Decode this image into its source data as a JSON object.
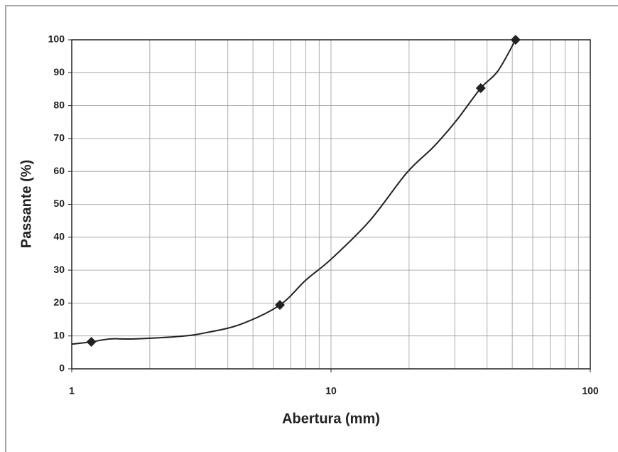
{
  "chart_data": {
    "type": "line",
    "x_label": "Abertura (mm)",
    "y_label": "Passante (%)",
    "xlog": true,
    "xlim": [
      1,
      100
    ],
    "xticks": [
      1,
      10,
      100
    ],
    "ylim": [
      0,
      100
    ],
    "yticks": [
      0,
      10,
      20,
      30,
      40,
      50,
      60,
      70,
      80,
      90,
      100
    ],
    "grid": true,
    "minor_grid": true,
    "series": [
      {
        "color": "#222222",
        "markers": false,
        "smooth": true,
        "x": [
          1,
          1.19,
          1.41,
          1.75,
          2.64,
          3.3,
          4.5,
          6.35,
          8.0,
          10,
          14.1,
          19.6,
          24.8,
          30.4,
          37.8,
          44,
          51.5
        ],
        "values": [
          7.5,
          8.2,
          9.1,
          9.1,
          9.9,
          11,
          13.6,
          19.4,
          27,
          33.3,
          45,
          59.6,
          67.4,
          75.4,
          85.3,
          90.5,
          100
        ]
      },
      {
        "color": "#222222",
        "markers": true,
        "line": false,
        "x": [
          1.19,
          6.35,
          37.8,
          51.5
        ],
        "values": [
          8.2,
          19.4,
          85.3,
          100
        ]
      }
    ]
  }
}
